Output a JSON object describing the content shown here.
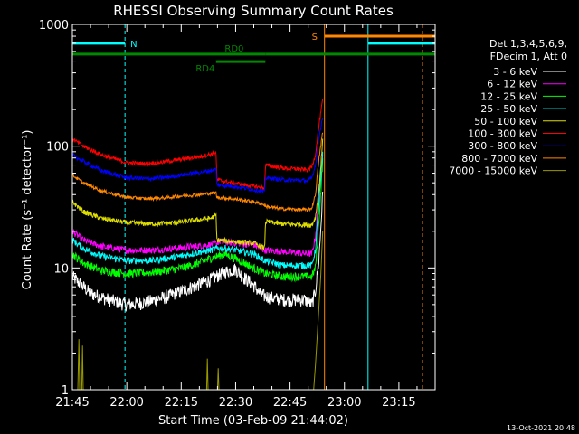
{
  "chart_data": {
    "type": "line",
    "title": "RHESSI Observing Summary Count Rates",
    "xlabel": "Start Time (03-Feb-09 21:44:02)",
    "ylabel": "Count Rate (s⁻¹ detector⁻¹)",
    "yscale": "log",
    "ylim": [
      1,
      1000
    ],
    "xlim_minutes": [
      0,
      100
    ],
    "x_unit": "minutes after 21:45",
    "x_ticks": [
      {
        "label": "21:45",
        "minute": 0
      },
      {
        "label": "22:00",
        "minute": 15
      },
      {
        "label": "22:15",
        "minute": 30
      },
      {
        "label": "22:30",
        "minute": 45
      },
      {
        "label": "22:45",
        "minute": 60
      },
      {
        "label": "23:00",
        "minute": 75
      },
      {
        "label": "23:15",
        "minute": 90
      }
    ],
    "y_ticks": [
      {
        "label": "1",
        "value": 1
      },
      {
        "label": "10",
        "value": 10
      },
      {
        "label": "100",
        "value": 100
      },
      {
        "label": "1000",
        "value": 1000
      }
    ],
    "legend": {
      "header": [
        "Det 1,3,4,5,6,9,",
        "FDecim 1, Att 0"
      ],
      "placement": "right"
    },
    "series": [
      {
        "name": "3 - 6 keV",
        "color": "#ffffff",
        "noise": 0.08,
        "points": [
          [
            0,
            8.5
          ],
          [
            2,
            7.5
          ],
          [
            5,
            6.2
          ],
          [
            10,
            5.5
          ],
          [
            15,
            5.0
          ],
          [
            20,
            5.2
          ],
          [
            26,
            5.8
          ],
          [
            32,
            6.8
          ],
          [
            38,
            8.0
          ],
          [
            41,
            9.0
          ],
          [
            43,
            9.5
          ],
          [
            45,
            9.8
          ],
          [
            47,
            8.5
          ],
          [
            50,
            7.2
          ],
          [
            52,
            6.0
          ],
          [
            57,
            5.5
          ],
          [
            64,
            5.5
          ],
          [
            66,
            5.0
          ],
          [
            67,
            6.5
          ],
          [
            68,
            12
          ],
          [
            69,
            40
          ]
        ]
      },
      {
        "name": "6 - 12 keV",
        "color": "#ff00ff",
        "noise": 0.04,
        "points": [
          [
            0,
            20
          ],
          [
            3,
            17
          ],
          [
            8,
            15
          ],
          [
            15,
            14
          ],
          [
            22,
            14
          ],
          [
            28,
            14.5
          ],
          [
            33,
            15
          ],
          [
            38,
            15.5
          ],
          [
            40,
            16
          ],
          [
            40.3,
            16.5
          ],
          [
            45,
            16
          ],
          [
            50,
            15.5
          ],
          [
            53,
            14
          ],
          [
            60,
            13.5
          ],
          [
            66,
            13
          ],
          [
            67,
            18
          ],
          [
            68,
            40
          ],
          [
            69,
            90
          ]
        ]
      },
      {
        "name": "12 - 25 keV",
        "color": "#00ff00",
        "noise": 0.05,
        "points": [
          [
            0,
            13
          ],
          [
            3,
            11
          ],
          [
            8,
            9.5
          ],
          [
            15,
            9
          ],
          [
            22,
            9.2
          ],
          [
            30,
            10
          ],
          [
            35,
            11
          ],
          [
            38,
            12
          ],
          [
            40,
            12.5
          ],
          [
            42,
            13
          ],
          [
            45,
            12
          ],
          [
            50,
            10
          ],
          [
            53,
            9
          ],
          [
            58,
            8.5
          ],
          [
            66,
            8.5
          ],
          [
            67,
            10
          ],
          [
            68,
            25
          ],
          [
            69,
            75
          ]
        ]
      },
      {
        "name": "25 - 50 keV",
        "color": "#00ffff",
        "noise": 0.04,
        "points": [
          [
            0,
            17
          ],
          [
            3,
            14.5
          ],
          [
            8,
            12.5
          ],
          [
            15,
            11.5
          ],
          [
            22,
            11.5
          ],
          [
            30,
            12.5
          ],
          [
            35,
            13.5
          ],
          [
            38,
            14
          ],
          [
            40,
            14.5
          ],
          [
            42,
            14.5
          ],
          [
            45,
            14
          ],
          [
            50,
            13
          ],
          [
            53,
            11.5
          ],
          [
            58,
            10.5
          ],
          [
            66,
            10.5
          ],
          [
            67,
            14
          ],
          [
            68,
            35
          ],
          [
            69,
            85
          ]
        ]
      },
      {
        "name": "50 - 100 keV",
        "color": "#dddd00",
        "noise": 0.03,
        "points": [
          [
            0,
            35
          ],
          [
            3,
            29
          ],
          [
            8,
            25.5
          ],
          [
            15,
            23.5
          ],
          [
            22,
            23
          ],
          [
            28,
            23.5
          ],
          [
            33,
            24.5
          ],
          [
            38,
            25.5
          ],
          [
            39.6,
            27
          ],
          [
            39.8,
            17
          ],
          [
            44,
            16.5
          ],
          [
            50,
            16
          ],
          [
            53,
            14.5
          ],
          [
            53.2,
            24
          ],
          [
            58,
            23
          ],
          [
            66,
            22.5
          ],
          [
            67,
            26
          ],
          [
            68,
            45
          ],
          [
            69,
            110
          ]
        ]
      },
      {
        "name": "100 - 300 keV",
        "color": "#ff0000",
        "noise": 0.025,
        "points": [
          [
            0,
            115
          ],
          [
            3,
            100
          ],
          [
            8,
            85
          ],
          [
            15,
            73
          ],
          [
            20,
            72
          ],
          [
            25,
            74
          ],
          [
            30,
            78
          ],
          [
            35,
            82
          ],
          [
            38,
            86
          ],
          [
            39.6,
            88
          ],
          [
            39.8,
            53
          ],
          [
            44,
            50
          ],
          [
            50,
            47
          ],
          [
            53,
            45
          ],
          [
            53.2,
            70
          ],
          [
            58,
            66
          ],
          [
            65,
            64
          ],
          [
            66,
            68
          ],
          [
            67,
            85
          ],
          [
            68,
            150
          ],
          [
            69,
            240
          ]
        ]
      },
      {
        "name": "300 - 800 keV",
        "color": "#0000ff",
        "noise": 0.025,
        "points": [
          [
            0,
            85
          ],
          [
            3,
            75
          ],
          [
            8,
            63
          ],
          [
            15,
            55
          ],
          [
            20,
            54
          ],
          [
            25,
            55
          ],
          [
            30,
            58
          ],
          [
            35,
            61
          ],
          [
            38,
            63
          ],
          [
            39.6,
            65
          ],
          [
            39.8,
            48
          ],
          [
            44,
            47
          ],
          [
            50,
            44
          ],
          [
            53,
            42
          ],
          [
            53.2,
            55
          ],
          [
            58,
            53
          ],
          [
            65,
            52
          ],
          [
            66,
            55
          ],
          [
            67,
            70
          ],
          [
            68,
            120
          ],
          [
            69,
            175
          ]
        ]
      },
      {
        "name": "800 - 7000 keV",
        "color": "#ff8800",
        "noise": 0.02,
        "points": [
          [
            0,
            58
          ],
          [
            3,
            50
          ],
          [
            8,
            43
          ],
          [
            15,
            38
          ],
          [
            20,
            37
          ],
          [
            25,
            37.5
          ],
          [
            30,
            39
          ],
          [
            35,
            40
          ],
          [
            38,
            41
          ],
          [
            39.6,
            41.5
          ],
          [
            39.8,
            38
          ],
          [
            44,
            37
          ],
          [
            50,
            35
          ],
          [
            53,
            33
          ],
          [
            53.2,
            32
          ],
          [
            58,
            30.5
          ],
          [
            65,
            30
          ],
          [
            66,
            31
          ],
          [
            67,
            40
          ],
          [
            68,
            80
          ],
          [
            69,
            130
          ]
        ]
      },
      {
        "name": "7000 - 15000 keV",
        "color": "#999900",
        "noise": 0,
        "points": [
          [
            0,
            1
          ],
          [
            1.5,
            1
          ],
          [
            1.8,
            2.6
          ],
          [
            2.0,
            1
          ],
          [
            2.6,
            1
          ],
          [
            2.8,
            2.3
          ],
          [
            3.0,
            1
          ],
          [
            37.0,
            1
          ],
          [
            37.2,
            1.8
          ],
          [
            37.4,
            1
          ],
          [
            40.0,
            1
          ],
          [
            40.2,
            1.5
          ],
          [
            40.4,
            1
          ],
          [
            66.5,
            1
          ],
          [
            67,
            1.6
          ],
          [
            67.5,
            2.8
          ],
          [
            68,
            5
          ],
          [
            68.5,
            9
          ],
          [
            69,
            20
          ]
        ]
      }
    ],
    "vertical_lines": [
      {
        "color": "#00ffff",
        "style": "solid",
        "minute": 0
      },
      {
        "color": "#00ffff",
        "style": "dashed",
        "minute": 14.5
      },
      {
        "color": "#ff8800",
        "style": "solid",
        "minute": 69.5
      },
      {
        "color": "#00ffff",
        "style": "solid",
        "minute": 81.5
      },
      {
        "color": "#ff8800",
        "style": "dashed",
        "minute": 96.5
      }
    ],
    "state_bars": [
      {
        "name": "night",
        "label": "N",
        "color": "#00ffff",
        "value": 700,
        "segments": [
          [
            0,
            14.5
          ],
          [
            81.5,
            100
          ]
        ],
        "label_at": 16
      },
      {
        "name": "saa",
        "label": "S",
        "color": "#ff8800",
        "value": 800,
        "segments": [
          [
            69.5,
            100
          ]
        ],
        "label_at": 66
      },
      {
        "name": "rd0",
        "label": "RD0",
        "color": "#008800",
        "value": 570,
        "segments": [
          [
            0,
            53.2
          ],
          [
            53.2,
            100
          ]
        ],
        "label_at": 42
      },
      {
        "name": "rd4",
        "label": "RD4",
        "color": "#008800",
        "value": 495,
        "segments": [
          [
            39.6,
            53.2
          ]
        ],
        "label_at": 34
      }
    ]
  },
  "footer_date": "13-Oct-2021 20:48"
}
